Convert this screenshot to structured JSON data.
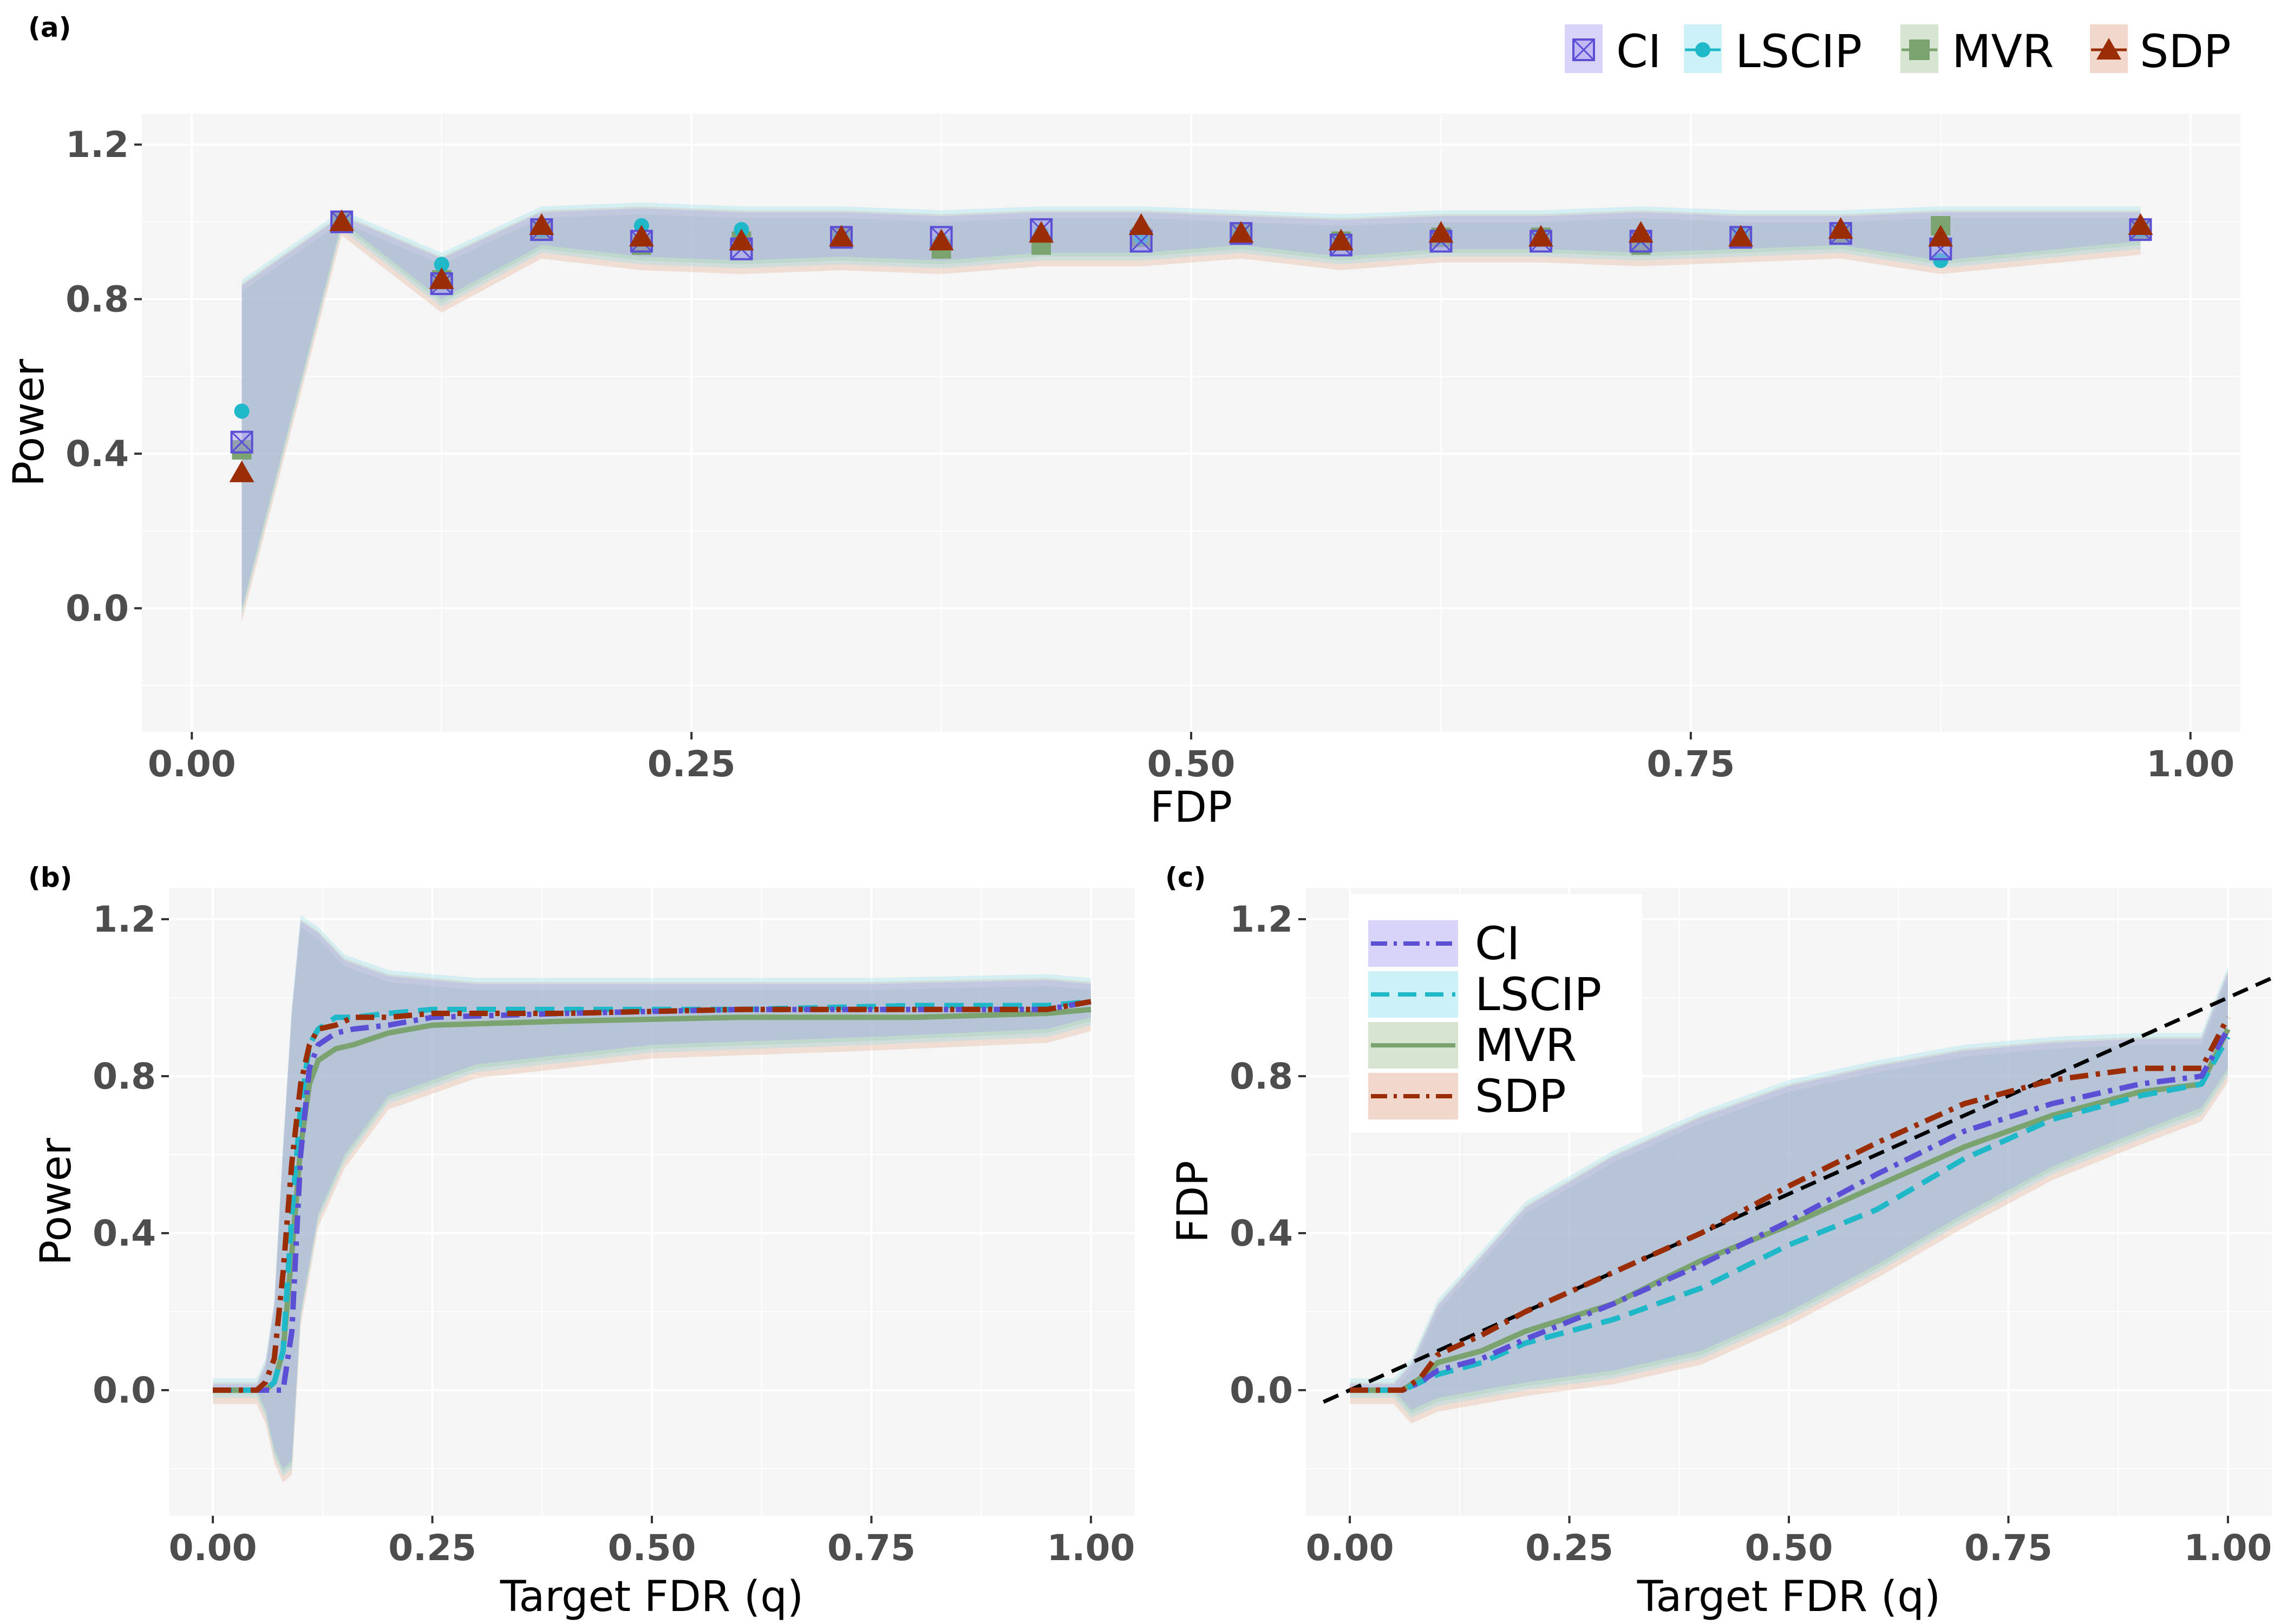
{
  "panel_labels": {
    "a": "(a)",
    "b": "(b)",
    "c": "(c)"
  },
  "legend_a": [
    "CI",
    "LSCIP",
    "MVR",
    "SDP"
  ],
  "legend_c": [
    "CI",
    "LSCIP",
    "MVR",
    "SDP"
  ],
  "methods": [
    {
      "name": "CI",
      "color": "#5b4fd6",
      "fill": "#a99df0",
      "dash": "dashdot"
    },
    {
      "name": "LSCIP",
      "color": "#1fb8c8",
      "fill": "#8ee0ea",
      "dash": "dashed"
    },
    {
      "name": "MVR",
      "color": "#7aa36f",
      "fill": "#a3c498",
      "dash": "solid"
    },
    {
      "name": "SDP",
      "color": "#9b2d05",
      "fill": "#e3a78d",
      "dash": "dashdot"
    }
  ],
  "chart_data": [
    {
      "id": "a",
      "type": "scatter",
      "title": "",
      "xlabel": "FDP",
      "ylabel": "Power",
      "xlim": [
        -0.025,
        1.025
      ],
      "ylim": [
        -0.32,
        1.28
      ],
      "xticks": [
        "0.00",
        "0.25",
        "0.50",
        "0.75",
        "1.00"
      ],
      "yticks": [
        "0.0",
        "0.4",
        "0.8",
        "1.2"
      ],
      "x": [
        0.025,
        0.075,
        0.125,
        0.175,
        0.225,
        0.275,
        0.325,
        0.375,
        0.425,
        0.475,
        0.525,
        0.575,
        0.625,
        0.675,
        0.725,
        0.775,
        0.825,
        0.875,
        0.975
      ],
      "band": {
        "lower": [
          0.0,
          1.0,
          0.8,
          0.94,
          0.91,
          0.9,
          0.91,
          0.9,
          0.92,
          0.92,
          0.94,
          0.91,
          0.93,
          0.93,
          0.92,
          0.93,
          0.94,
          0.9,
          0.95
        ],
        "upper": [
          0.82,
          1.0,
          0.89,
          1.01,
          1.02,
          1.01,
          1.01,
          1.0,
          1.01,
          1.01,
          1.0,
          0.99,
          1.0,
          1.0,
          1.01,
          1.0,
          1.0,
          1.01,
          1.01
        ]
      },
      "series": [
        {
          "name": "CI",
          "values": [
            0.43,
            1.0,
            0.84,
            0.98,
            0.95,
            0.93,
            0.96,
            0.96,
            0.98,
            0.95,
            0.97,
            0.94,
            0.95,
            0.95,
            0.95,
            0.96,
            0.97,
            0.93,
            0.98
          ]
        },
        {
          "name": "LSCIP",
          "values": [
            0.51,
            1.0,
            0.89,
            0.98,
            0.99,
            0.98,
            0.96,
            0.95,
            0.97,
            0.96,
            0.97,
            0.95,
            0.96,
            0.96,
            0.96,
            0.97,
            0.98,
            0.9,
            0.98
          ]
        },
        {
          "name": "MVR",
          "values": [
            0.41,
            1.0,
            0.85,
            0.98,
            0.94,
            0.95,
            0.96,
            0.93,
            0.94,
            0.96,
            0.97,
            0.95,
            0.96,
            0.96,
            0.94,
            0.96,
            0.97,
            0.99,
            0.98
          ]
        },
        {
          "name": "SDP",
          "values": [
            0.35,
            1.0,
            0.85,
            0.99,
            0.96,
            0.95,
            0.96,
            0.95,
            0.97,
            0.99,
            0.97,
            0.95,
            0.97,
            0.96,
            0.97,
            0.96,
            0.98,
            0.96,
            0.99
          ]
        }
      ]
    },
    {
      "id": "b",
      "type": "line",
      "title": "",
      "xlabel": "Target FDR (q)",
      "ylabel": "Power",
      "xlim": [
        -0.05,
        1.05
      ],
      "ylim": [
        -0.32,
        1.28
      ],
      "xticks": [
        "0.00",
        "0.25",
        "0.50",
        "0.75",
        "1.00"
      ],
      "yticks": [
        "0.0",
        "0.4",
        "0.8",
        "1.2"
      ],
      "band": {
        "x": [
          0.0,
          0.05,
          0.06,
          0.07,
          0.08,
          0.09,
          0.1,
          0.12,
          0.15,
          0.2,
          0.3,
          0.5,
          0.75,
          0.95,
          1.0
        ],
        "lower": [
          0.0,
          0.0,
          -0.05,
          -0.15,
          -0.2,
          -0.18,
          0.2,
          0.45,
          0.6,
          0.75,
          0.83,
          0.88,
          0.9,
          0.92,
          0.95
        ],
        "upper": [
          0.0,
          0.0,
          0.05,
          0.2,
          0.6,
          0.95,
          1.18,
          1.15,
          1.08,
          1.04,
          1.02,
          1.02,
          1.02,
          1.03,
          1.02
        ]
      },
      "series": [
        {
          "name": "CI",
          "x": [
            0.0,
            0.07,
            0.08,
            0.09,
            0.1,
            0.11,
            0.12,
            0.14,
            0.16,
            0.2,
            0.25,
            0.4,
            0.6,
            0.8,
            0.95,
            1.0
          ],
          "values": [
            0.0,
            0.0,
            0.0,
            0.15,
            0.6,
            0.82,
            0.88,
            0.91,
            0.92,
            0.93,
            0.95,
            0.96,
            0.97,
            0.97,
            0.97,
            0.99
          ]
        },
        {
          "name": "LSCIP",
          "x": [
            0.0,
            0.06,
            0.07,
            0.08,
            0.09,
            0.1,
            0.11,
            0.12,
            0.14,
            0.16,
            0.2,
            0.25,
            0.4,
            0.6,
            0.8,
            0.95,
            1.0
          ],
          "values": [
            0.0,
            0.0,
            0.02,
            0.1,
            0.45,
            0.72,
            0.88,
            0.92,
            0.95,
            0.95,
            0.96,
            0.97,
            0.97,
            0.97,
            0.98,
            0.98,
            0.99
          ]
        },
        {
          "name": "MVR",
          "x": [
            0.0,
            0.06,
            0.07,
            0.08,
            0.09,
            0.1,
            0.11,
            0.12,
            0.14,
            0.16,
            0.2,
            0.25,
            0.4,
            0.6,
            0.8,
            0.95,
            1.0
          ],
          "values": [
            0.0,
            0.0,
            0.02,
            0.1,
            0.35,
            0.62,
            0.78,
            0.84,
            0.87,
            0.88,
            0.91,
            0.93,
            0.94,
            0.95,
            0.95,
            0.96,
            0.97
          ]
        },
        {
          "name": "SDP",
          "x": [
            0.0,
            0.05,
            0.06,
            0.07,
            0.08,
            0.09,
            0.1,
            0.11,
            0.12,
            0.14,
            0.16,
            0.2,
            0.25,
            0.4,
            0.6,
            0.8,
            0.95,
            1.0
          ],
          "values": [
            0.0,
            0.0,
            0.02,
            0.08,
            0.3,
            0.58,
            0.78,
            0.88,
            0.92,
            0.93,
            0.95,
            0.95,
            0.96,
            0.96,
            0.97,
            0.97,
            0.97,
            0.99
          ]
        }
      ]
    },
    {
      "id": "c",
      "type": "line",
      "title": "",
      "xlabel": "Target FDR (q)",
      "ylabel": "FDP",
      "xlim": [
        -0.05,
        1.05
      ],
      "ylim": [
        -0.32,
        1.28
      ],
      "xticks": [
        "0.00",
        "0.25",
        "0.50",
        "0.75",
        "1.00"
      ],
      "yticks": [
        "0.0",
        "0.4",
        "0.8",
        "1.2"
      ],
      "reference_line": {
        "x": [
          -0.03,
          1.05
        ],
        "y": [
          -0.03,
          1.05
        ]
      },
      "band": {
        "x": [
          0.0,
          0.05,
          0.07,
          0.1,
          0.2,
          0.3,
          0.4,
          0.5,
          0.6,
          0.7,
          0.8,
          0.9,
          0.97,
          1.0
        ],
        "lower": [
          0.0,
          0.0,
          -0.05,
          -0.02,
          0.02,
          0.05,
          0.1,
          0.2,
          0.32,
          0.45,
          0.57,
          0.66,
          0.72,
          0.82
        ],
        "upper": [
          0.0,
          0.0,
          0.05,
          0.2,
          0.45,
          0.58,
          0.68,
          0.76,
          0.81,
          0.85,
          0.87,
          0.88,
          0.88,
          1.05
        ]
      },
      "series": [
        {
          "name": "CI",
          "x": [
            0.0,
            0.06,
            0.08,
            0.1,
            0.15,
            0.2,
            0.3,
            0.4,
            0.5,
            0.6,
            0.7,
            0.8,
            0.9,
            0.97,
            1.0
          ],
          "values": [
            0.0,
            0.0,
            0.02,
            0.05,
            0.08,
            0.13,
            0.22,
            0.32,
            0.43,
            0.55,
            0.66,
            0.73,
            0.78,
            0.8,
            0.92
          ]
        },
        {
          "name": "LSCIP",
          "x": [
            0.0,
            0.06,
            0.08,
            0.1,
            0.15,
            0.2,
            0.3,
            0.4,
            0.5,
            0.6,
            0.7,
            0.8,
            0.9,
            0.97,
            1.0
          ],
          "values": [
            0.0,
            0.0,
            0.02,
            0.04,
            0.07,
            0.12,
            0.18,
            0.26,
            0.37,
            0.46,
            0.59,
            0.69,
            0.75,
            0.78,
            0.9
          ]
        },
        {
          "name": "MVR",
          "x": [
            0.0,
            0.06,
            0.08,
            0.1,
            0.15,
            0.2,
            0.3,
            0.4,
            0.5,
            0.6,
            0.7,
            0.8,
            0.9,
            0.97,
            1.0
          ],
          "values": [
            0.0,
            0.0,
            0.03,
            0.07,
            0.1,
            0.15,
            0.22,
            0.33,
            0.42,
            0.52,
            0.62,
            0.7,
            0.76,
            0.78,
            0.92
          ]
        },
        {
          "name": "SDP",
          "x": [
            0.0,
            0.06,
            0.08,
            0.1,
            0.15,
            0.2,
            0.3,
            0.4,
            0.5,
            0.6,
            0.7,
            0.8,
            0.9,
            0.97,
            1.0
          ],
          "values": [
            0.0,
            0.0,
            0.03,
            0.09,
            0.14,
            0.2,
            0.3,
            0.4,
            0.52,
            0.63,
            0.73,
            0.79,
            0.82,
            0.82,
            0.95
          ]
        }
      ]
    }
  ]
}
